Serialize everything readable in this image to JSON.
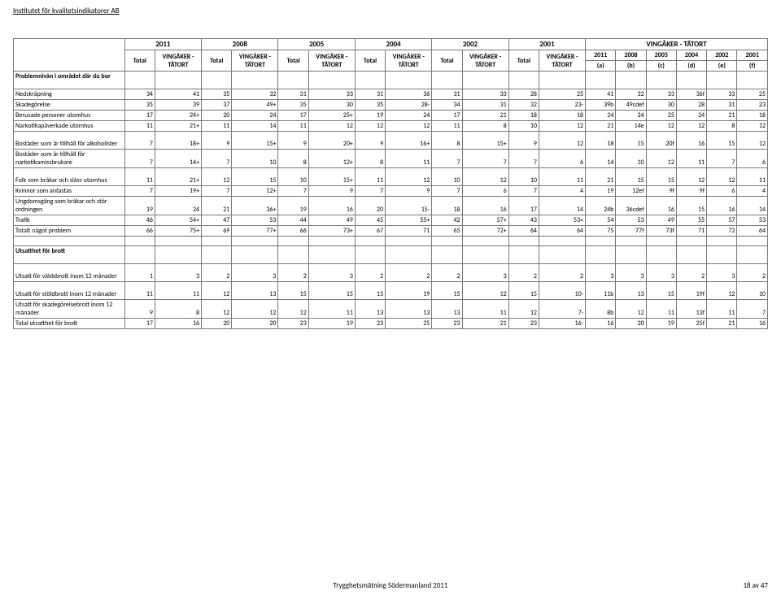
{
  "meta": {
    "org": "Institutet för kvalitetsindikatorer AB",
    "footer_center": "Trygghetsmätning Södermanland 2011",
    "footer_right": "18 av 47"
  },
  "header": {
    "region": "VINGÅKER - TÄTORT",
    "years_top": [
      "2011",
      "2008",
      "2005",
      "2004",
      "2002",
      "2001"
    ],
    "col_pair_total": "Total",
    "col_pair_loc": "VINGÅKER - TÄTORT",
    "right_years": [
      "2011",
      "2008",
      "2005",
      "2004",
      "2002",
      "2001"
    ],
    "right_letters": [
      "(a)",
      "(b)",
      "(c)",
      "(d)",
      "(e)",
      "(f)"
    ]
  },
  "section1": {
    "title": "Problemnivån i området där du bor",
    "rows": [
      {
        "label": "Nedskräpning",
        "v": [
          "34",
          "41",
          "35",
          "32",
          "31",
          "33",
          "31",
          "36",
          "31",
          "33",
          "28",
          "25",
          "41",
          "32",
          "33",
          "36f",
          "33",
          "25"
        ]
      },
      {
        "label": "Skadegörelse",
        "v": [
          "35",
          "39",
          "37",
          "49+",
          "35",
          "30",
          "35",
          "28-",
          "34",
          "31",
          "32",
          "23-",
          "39b",
          "49cdef",
          "30",
          "28",
          "31",
          "23"
        ]
      },
      {
        "label": "Berusade personer utomhus",
        "v": [
          "17",
          "24+",
          "20",
          "24",
          "17",
          "25+",
          "19",
          "24",
          "17",
          "21",
          "18",
          "18",
          "24",
          "24",
          "25",
          "24",
          "21",
          "18"
        ]
      },
      {
        "label": "Narkotikapåverkade utomhus",
        "v": [
          "11",
          "21+",
          "11",
          "14",
          "11",
          "12",
          "12",
          "12",
          "11",
          "8",
          "10",
          "12",
          "21",
          "14e",
          "12",
          "12",
          "8",
          "12"
        ]
      },
      {
        "label": "Bostäder som är tillhåll för alkoholister",
        "tall": true,
        "v": [
          "7",
          "18+",
          "9",
          "15+",
          "9",
          "20+",
          "9",
          "16+",
          "8",
          "15+",
          "9",
          "12",
          "18",
          "15",
          "20f",
          "16",
          "15",
          "12"
        ]
      },
      {
        "label": "Bostäder som är tillhåll för narkotikamissbrukare",
        "tall": true,
        "v": [
          "7",
          "14+",
          "7",
          "10",
          "8",
          "12+",
          "8",
          "11",
          "7",
          "7",
          "7",
          "6",
          "14",
          "10",
          "12",
          "11",
          "7",
          "6"
        ]
      },
      {
        "label": "Folk som bråkar och slåss utomhus",
        "tall": true,
        "v": [
          "11",
          "21+",
          "12",
          "15",
          "10",
          "15+",
          "11",
          "12",
          "10",
          "12",
          "10",
          "11",
          "21",
          "15",
          "15",
          "12",
          "12",
          "11"
        ]
      },
      {
        "label": "Kvinnor som antastas",
        "v": [
          "7",
          "19+",
          "7",
          "12+",
          "7",
          "9",
          "7",
          "9",
          "7",
          "6",
          "7",
          "4",
          "19",
          "12ef",
          "9f",
          "9f",
          "6",
          "4"
        ]
      },
      {
        "label": "Ungdomsgäng som bråkar och stör ordningen",
        "tall": true,
        "v": [
          "19",
          "24",
          "21",
          "36+",
          "19",
          "16",
          "20",
          "15-",
          "18",
          "16",
          "17",
          "14",
          "24b",
          "36cdef",
          "16",
          "15",
          "16",
          "14"
        ]
      },
      {
        "label": "Trafik",
        "v": [
          "46",
          "54+",
          "47",
          "53",
          "44",
          "49",
          "45",
          "55+",
          "42",
          "57+",
          "43",
          "53+",
          "54",
          "53",
          "49",
          "55",
          "57",
          "53"
        ]
      },
      {
        "label": "Totalt något problem",
        "v": [
          "66",
          "75+",
          "69",
          "77+",
          "66",
          "73+",
          "67",
          "71",
          "65",
          "72+",
          "64",
          "64",
          "75",
          "77f",
          "73f",
          "71",
          "72",
          "64"
        ]
      }
    ]
  },
  "section2": {
    "title": "Utsatthet för brott",
    "rows": [
      {
        "label": "Utsatt för våldsbrott inom 12 månader",
        "tall": true,
        "v": [
          "1",
          "3",
          "2",
          "3",
          "2",
          "3",
          "2",
          "2",
          "2",
          "3",
          "2",
          "2",
          "3",
          "3",
          "3",
          "2",
          "3",
          "2"
        ]
      },
      {
        "label": "Utsatt för stöldbrott inom 12 månader",
        "tall": true,
        "v": [
          "11",
          "11",
          "12",
          "13",
          "15",
          "15",
          "15",
          "19",
          "15",
          "12",
          "15",
          "10-",
          "11b",
          "13",
          "15",
          "19f",
          "12",
          "10"
        ]
      },
      {
        "label": "Utsatt för skadegörelsebrott inom 12 månader",
        "tall": true,
        "v": [
          "9",
          "8",
          "12",
          "12",
          "12",
          "11",
          "13",
          "13",
          "13",
          "11",
          "12",
          "7-",
          "8b",
          "12",
          "11",
          "13f",
          "11",
          "7"
        ]
      },
      {
        "label": "Total utsatthet för brott",
        "v": [
          "17",
          "16",
          "20",
          "20",
          "23",
          "19",
          "23",
          "25",
          "23",
          "21",
          "23",
          "16-",
          "16",
          "20",
          "19",
          "25f",
          "21",
          "16"
        ]
      }
    ]
  }
}
